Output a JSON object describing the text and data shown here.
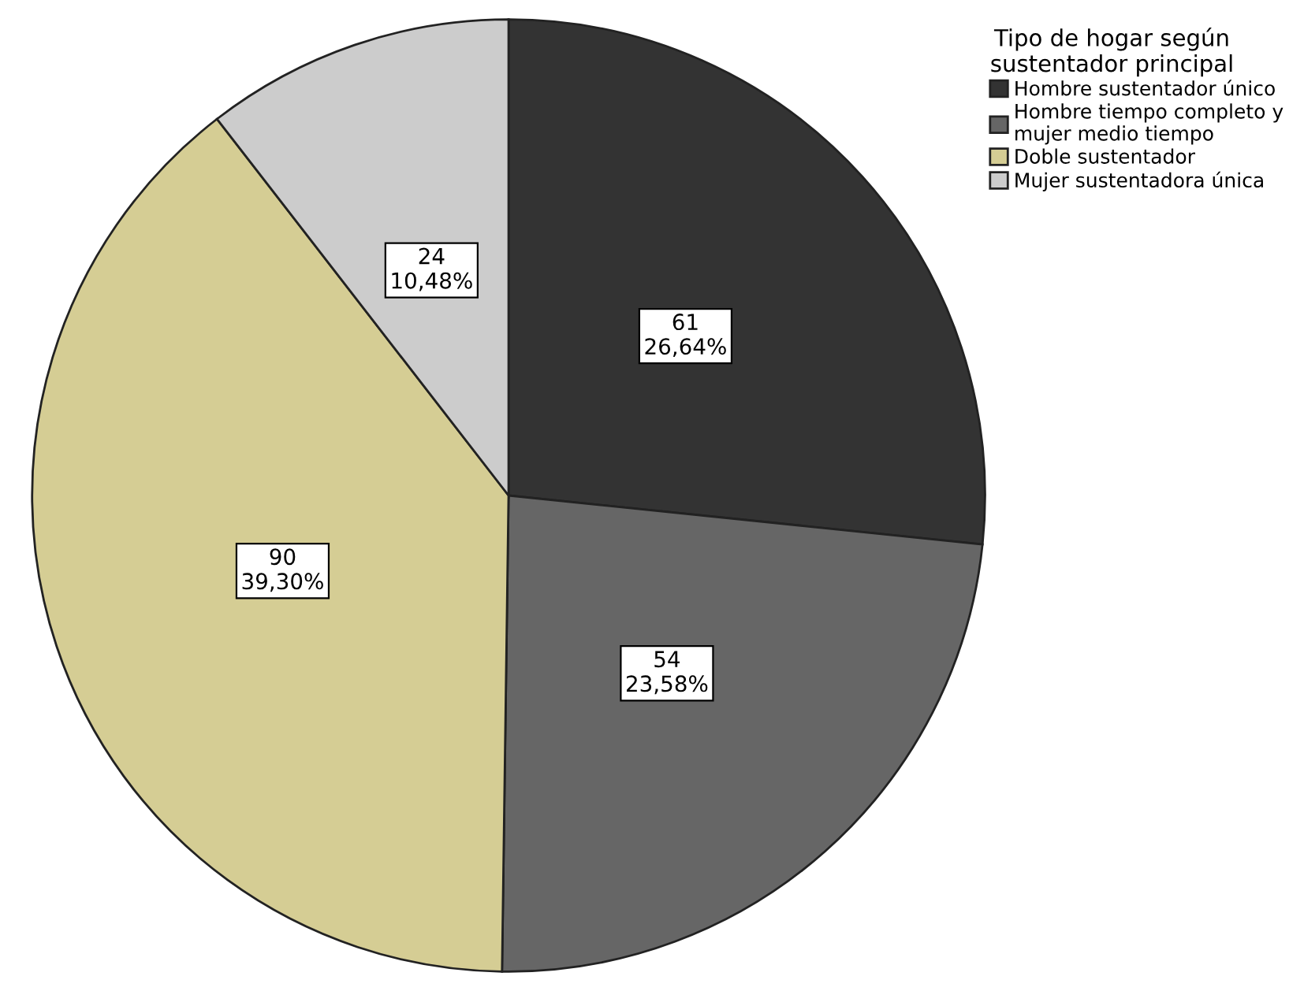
{
  "chart_data": {
    "type": "pie",
    "legend_title": "Tipo de hogar según\nsustentador principal",
    "categories": [
      "Hombre sustentador único",
      "Hombre tiempo completo y\nmujer medio tiempo",
      "Doble sustentador",
      "Mujer sustentadora única"
    ],
    "values": [
      61,
      54,
      90,
      24
    ],
    "colors": [
      "#333333",
      "#666666",
      "#d5cd94",
      "#cccccc"
    ],
    "value_labels": [
      "61\n26,64%",
      "54\n23,58%",
      "90\n39,30%",
      "24\n10,48%"
    ],
    "legend": "top right"
  }
}
